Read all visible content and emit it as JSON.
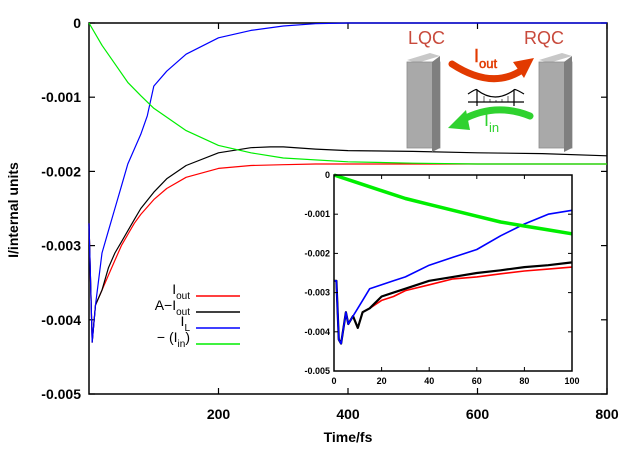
{
  "chart_data": [
    {
      "id": "main",
      "type": "line",
      "title": "",
      "xlabel": "Time/fs",
      "ylabel": "I/internal units",
      "xlim": [
        0,
        800
      ],
      "ylim": [
        -0.005,
        0
      ],
      "xticks": [
        200,
        400,
        600,
        800
      ],
      "xtick_labels": [
        "200",
        "400",
        "600",
        "800"
      ],
      "yticks": [
        0,
        -0.001,
        -0.002,
        -0.003,
        -0.004,
        -0.005
      ],
      "ytick_labels": [
        "0",
        "-0.001",
        "-0.002",
        "-0.003",
        "-0.004",
        "-0.005"
      ],
      "grid": false,
      "legend_position": "lower-left",
      "series": [
        {
          "name": "I_out",
          "color": "#ff0000",
          "x": [
            0,
            5,
            10,
            20,
            30,
            40,
            50,
            60,
            70,
            80,
            100,
            120,
            150,
            200,
            250,
            300,
            350,
            400,
            500,
            600,
            700,
            800
          ],
          "y": [
            -0.0027,
            -0.0043,
            -0.0038,
            -0.0036,
            -0.0034,
            -0.0032,
            -0.003,
            -0.00285,
            -0.0027,
            -0.00258,
            -0.00238,
            -0.00223,
            -0.00208,
            -0.00196,
            -0.00192,
            -0.00191,
            -0.0019,
            -0.0019,
            -0.0019,
            -0.0019,
            -0.0019,
            -0.0019
          ]
        },
        {
          "name": "A-I_out",
          "color": "#000000",
          "x": [
            0,
            5,
            10,
            20,
            30,
            40,
            50,
            60,
            70,
            80,
            100,
            120,
            150,
            200,
            250,
            280,
            300,
            350,
            400,
            500,
            600,
            700,
            800
          ],
          "y": [
            -0.0027,
            -0.0043,
            -0.0038,
            -0.0036,
            -0.0033,
            -0.0031,
            -0.00295,
            -0.0028,
            -0.00265,
            -0.0025,
            -0.00228,
            -0.0021,
            -0.00192,
            -0.00175,
            -0.00168,
            -0.00167,
            -0.00167,
            -0.0017,
            -0.00172,
            -0.00173,
            -0.00175,
            -0.00176,
            -0.00179
          ]
        },
        {
          "name": "I_L",
          "color": "#0000ff",
          "x": [
            0,
            5,
            10,
            20,
            30,
            40,
            50,
            60,
            70,
            80,
            90,
            100,
            120,
            150,
            200,
            250,
            300,
            350,
            400,
            500,
            600,
            700,
            800
          ],
          "y": [
            -0.0027,
            -0.0043,
            -0.0038,
            -0.0031,
            -0.0028,
            -0.0025,
            -0.0022,
            -0.0019,
            -0.0017,
            -0.0015,
            -0.00125,
            -0.00085,
            -0.00065,
            -0.00042,
            -0.0002,
            -0.0001,
            -4e-05,
            -1e-05,
            0,
            0,
            0,
            0,
            0
          ]
        },
        {
          "name": "-(I_in)",
          "color": "#00ee00",
          "x": [
            0,
            20,
            40,
            60,
            80,
            100,
            150,
            200,
            250,
            300,
            400,
            500,
            600,
            700,
            800
          ],
          "y": [
            0,
            -0.0003,
            -0.00055,
            -0.0008,
            -0.00098,
            -0.00115,
            -0.00145,
            -0.00165,
            -0.00175,
            -0.00182,
            -0.00187,
            -0.00189,
            -0.0019,
            -0.0019,
            -0.0019
          ]
        }
      ],
      "legend": [
        {
          "label_main": "I",
          "label_sub": "out",
          "label_suffix": "",
          "color": "#ff0000"
        },
        {
          "label_main": "A−I",
          "label_sub": "out",
          "label_suffix": "",
          "color": "#000000"
        },
        {
          "label_main": "I",
          "label_sub": "L",
          "label_suffix": "",
          "color": "#0000ff"
        },
        {
          "label_main": "− (I",
          "label_sub": "in",
          "label_suffix": ")",
          "color": "#00ee00"
        }
      ]
    },
    {
      "id": "inset",
      "type": "line",
      "xlim": [
        0,
        100
      ],
      "ylim": [
        -0.005,
        0
      ],
      "xticks": [
        0,
        20,
        40,
        60,
        80,
        100
      ],
      "xtick_labels": [
        "0",
        "20",
        "40",
        "60",
        "80",
        "100"
      ],
      "yticks": [
        0,
        -0.001,
        -0.002,
        -0.003,
        -0.004,
        -0.005
      ],
      "ytick_labels": [
        "0",
        "-0.001",
        "-0.002",
        "-0.003",
        "-0.004",
        "-0.005"
      ],
      "series": [
        {
          "name": "I_out",
          "color": "#ff0000",
          "x": [
            0,
            1,
            2,
            3,
            5,
            6,
            8,
            10,
            12,
            15,
            20,
            25,
            30,
            40,
            50,
            60,
            70,
            80,
            90,
            100
          ],
          "y": [
            -0.0027,
            -0.0027,
            -0.0042,
            -0.0043,
            -0.0035,
            -0.0038,
            -0.0036,
            -0.0039,
            -0.0035,
            -0.0034,
            -0.0032,
            -0.0031,
            -0.00295,
            -0.0028,
            -0.00265,
            -0.0026,
            -0.00252,
            -0.00245,
            -0.0024,
            -0.00235
          ]
        },
        {
          "name": "A-I_out",
          "color": "#000000",
          "x": [
            0,
            1,
            2,
            3,
            5,
            6,
            8,
            10,
            12,
            15,
            20,
            25,
            30,
            40,
            50,
            60,
            70,
            80,
            90,
            100
          ],
          "y": [
            -0.0027,
            -0.0027,
            -0.0042,
            -0.0043,
            -0.0035,
            -0.0038,
            -0.0036,
            -0.0039,
            -0.0035,
            -0.0034,
            -0.0031,
            -0.003,
            -0.0029,
            -0.0027,
            -0.0026,
            -0.0025,
            -0.00243,
            -0.00235,
            -0.0023,
            -0.00223
          ]
        },
        {
          "name": "I_L",
          "color": "#0000ff",
          "x": [
            0,
            1,
            2,
            3,
            5,
            6,
            8,
            10,
            12,
            15,
            20,
            25,
            30,
            40,
            50,
            60,
            70,
            80,
            90,
            100
          ],
          "y": [
            -0.0027,
            -0.0027,
            -0.0042,
            -0.0043,
            -0.0035,
            -0.0038,
            -0.0036,
            -0.0034,
            -0.0032,
            -0.0029,
            -0.0028,
            -0.0027,
            -0.0026,
            -0.0023,
            -0.0021,
            -0.0019,
            -0.00155,
            -0.00125,
            -0.001,
            -0.0009
          ]
        },
        {
          "name": "-(I_in)",
          "color": "#00ee00",
          "x": [
            0,
            10,
            20,
            30,
            40,
            50,
            60,
            70,
            80,
            90,
            100
          ],
          "y": [
            0,
            -0.0002,
            -0.0004,
            -0.0006,
            -0.00075,
            -0.0009,
            -0.00105,
            -0.0012,
            -0.0013,
            -0.0014,
            -0.0015
          ]
        }
      ]
    }
  ],
  "diagram": {
    "left_box_label": "LQC",
    "right_box_label": "RQC",
    "arrow_out_label": "I",
    "arrow_out_sub": "out",
    "arrow_in_label": "I",
    "arrow_in_sub": "in",
    "label_color": "#c84a3c",
    "arrow_out_color": "#e23a00",
    "arrow_in_color": "#2fd22f",
    "box_color": "#a9a9a9"
  }
}
